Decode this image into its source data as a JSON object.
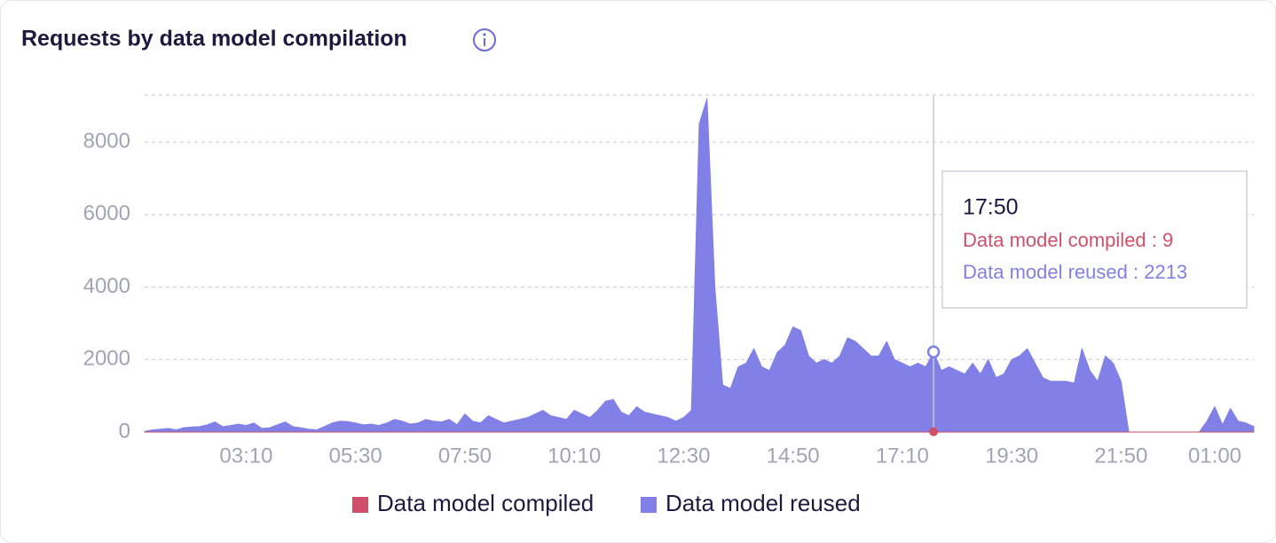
{
  "chart_data": {
    "type": "area",
    "title": "Requests by data model compilation",
    "categories": [
      null,
      null,
      null,
      null,
      null,
      null,
      null,
      null,
      null,
      null,
      null,
      null,
      null,
      "03:10",
      null,
      null,
      null,
      null,
      null,
      null,
      null,
      null,
      null,
      null,
      null,
      null,
      null,
      "05:30",
      null,
      null,
      null,
      null,
      null,
      null,
      null,
      null,
      null,
      null,
      null,
      null,
      null,
      "07:50",
      null,
      null,
      null,
      null,
      null,
      null,
      null,
      null,
      null,
      null,
      null,
      null,
      null,
      "10:10",
      null,
      null,
      null,
      null,
      null,
      null,
      null,
      null,
      null,
      null,
      null,
      null,
      null,
      "12:30",
      null,
      null,
      null,
      null,
      null,
      null,
      null,
      null,
      null,
      null,
      null,
      null,
      null,
      "14:50",
      null,
      null,
      null,
      null,
      null,
      null,
      null,
      null,
      null,
      null,
      null,
      null,
      null,
      "17:10",
      null,
      null,
      null,
      null,
      null,
      null,
      null,
      null,
      null,
      null,
      null,
      null,
      null,
      "19:30",
      null,
      null,
      null,
      null,
      null,
      null,
      null,
      null,
      null,
      null,
      null,
      null,
      null,
      "21:50",
      null,
      null,
      null,
      null,
      null,
      null,
      null,
      null,
      null,
      null,
      null,
      "01:00",
      null,
      null,
      null,
      null,
      null
    ],
    "series": [
      {
        "name": "Data model compiled",
        "color": "#d0506a",
        "values": [
          0,
          0,
          0,
          0,
          0,
          0,
          0,
          0,
          0,
          0,
          0,
          0,
          0,
          0,
          0,
          0,
          0,
          0,
          0,
          0,
          0,
          0,
          0,
          0,
          0,
          0,
          0,
          0,
          0,
          0,
          0,
          0,
          0,
          0,
          0,
          0,
          0,
          0,
          0,
          0,
          0,
          0,
          0,
          0,
          0,
          0,
          0,
          0,
          0,
          0,
          0,
          0,
          0,
          0,
          0,
          0,
          0,
          0,
          0,
          0,
          0,
          0,
          0,
          0,
          0,
          0,
          0,
          0,
          0,
          0,
          0,
          0,
          0,
          0,
          0,
          0,
          0,
          0,
          0,
          0,
          0,
          0,
          0,
          0,
          0,
          0,
          0,
          0,
          0,
          0,
          0,
          0,
          0,
          0,
          0,
          0,
          0,
          0,
          0,
          0,
          0,
          9,
          0,
          0,
          0,
          0,
          0,
          0,
          0,
          0,
          0,
          0,
          0,
          0,
          0,
          0,
          0,
          0,
          0,
          0,
          0,
          0,
          0,
          0,
          0,
          0,
          0,
          0,
          0,
          0,
          0,
          0,
          0,
          0,
          0,
          0,
          0,
          0,
          0,
          0,
          0,
          0,
          0
        ]
      },
      {
        "name": "Data model reused",
        "color": "#8080e6",
        "values": [
          20,
          60,
          80,
          100,
          60,
          120,
          140,
          150,
          200,
          280,
          150,
          180,
          220,
          180,
          250,
          100,
          120,
          200,
          280,
          150,
          120,
          80,
          60,
          150,
          250,
          300,
          290,
          250,
          200,
          220,
          180,
          250,
          350,
          300,
          220,
          250,
          350,
          300,
          280,
          350,
          200,
          500,
          300,
          250,
          450,
          350,
          250,
          300,
          350,
          400,
          500,
          600,
          450,
          400,
          350,
          600,
          500,
          400,
          600,
          850,
          900,
          550,
          450,
          700,
          550,
          500,
          450,
          400,
          300,
          400,
          600,
          8500,
          9200,
          4000,
          1300,
          1200,
          1800,
          1900,
          2300,
          1800,
          1700,
          2200,
          2400,
          2900,
          2800,
          2100,
          1900,
          2000,
          1900,
          2100,
          2600,
          2500,
          2300,
          2100,
          2100,
          2500,
          2000,
          1900,
          1800,
          1900,
          1800,
          2213,
          1700,
          1800,
          1700,
          1600,
          1900,
          1600,
          2000,
          1500,
          1600,
          2000,
          2100,
          2300,
          1900,
          1500,
          1400,
          1400,
          1400,
          1350,
          2300,
          1700,
          1400,
          2100,
          1900,
          1400,
          0,
          0,
          0,
          0,
          0,
          0,
          0,
          0,
          0,
          0,
          300,
          700,
          200,
          650,
          300,
          250,
          150
        ]
      }
    ],
    "ylim": [
      0,
      9300
    ],
    "yticks": [
      0,
      2000,
      4000,
      6000,
      8000
    ],
    "grid": true,
    "legend": "bottom",
    "tooltip": {
      "title": "17:50",
      "lines": [
        "Data model compiled : 9",
        "Data model reused : 2213"
      ]
    }
  }
}
